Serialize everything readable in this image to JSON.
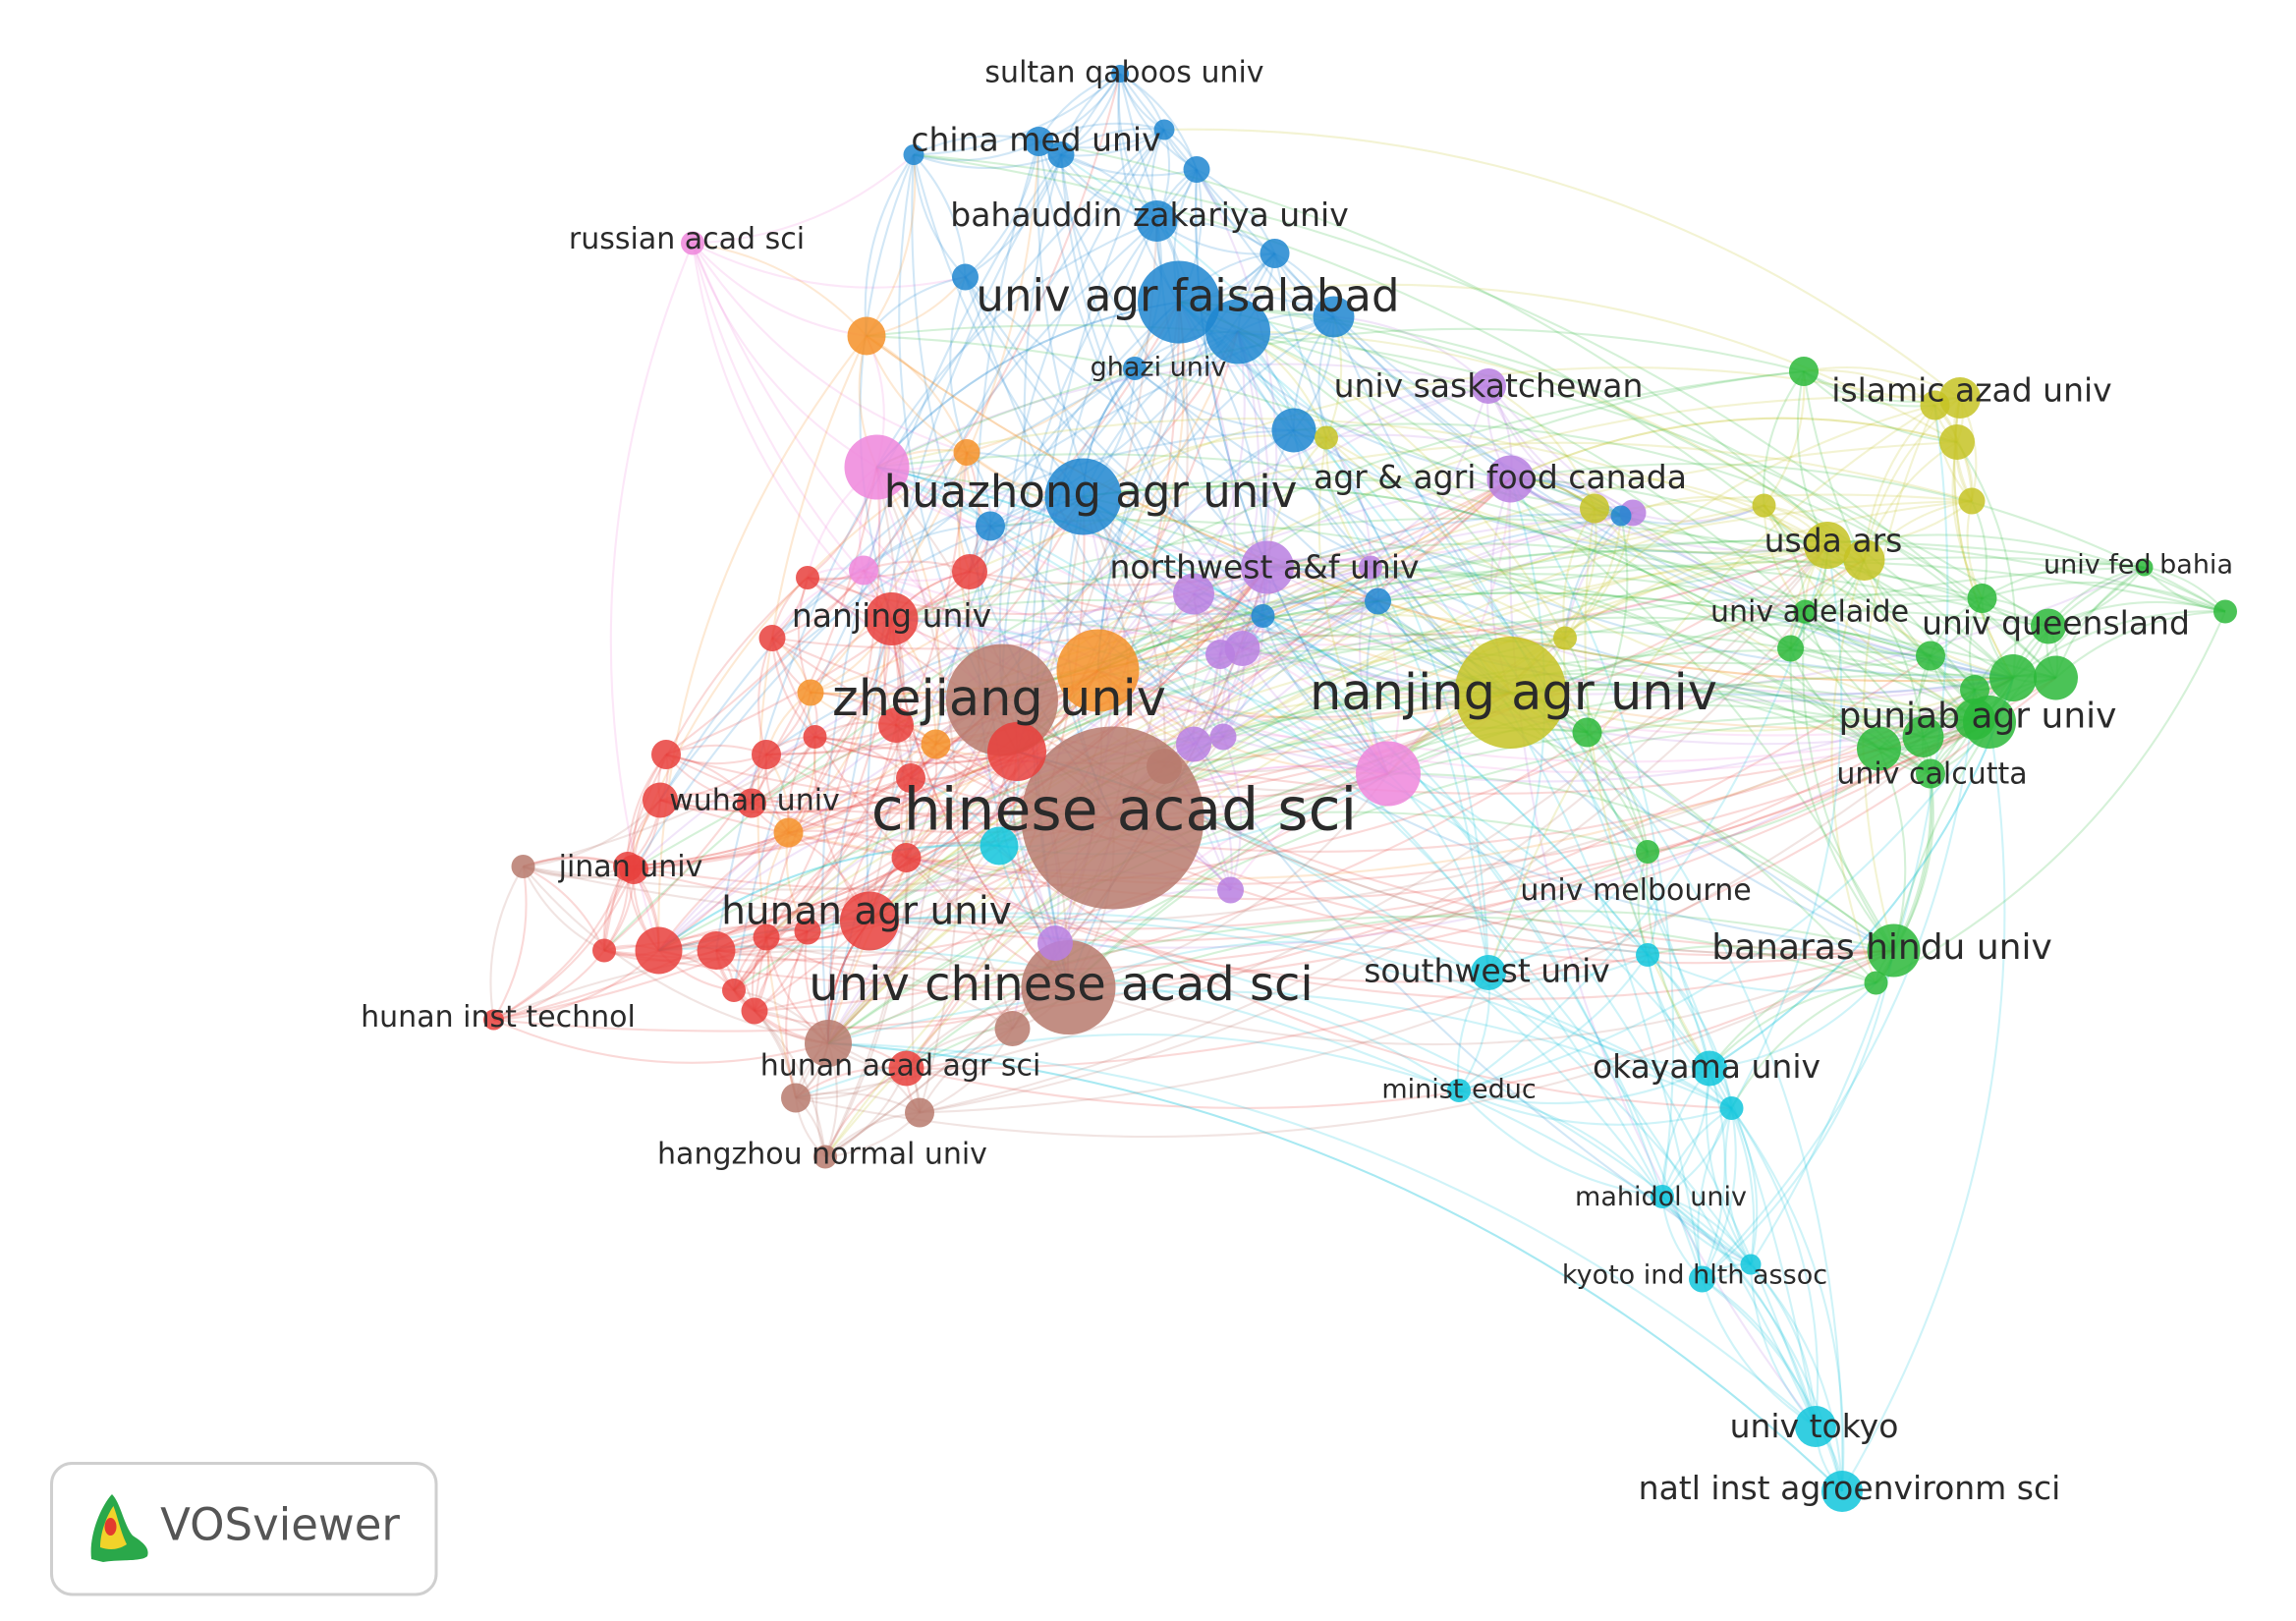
{
  "nodes": [
    {
      "label": "sultan qaboos univ",
      "color": "#1f86d0"
    },
    {
      "label": "china med univ",
      "color": "#1f86d0"
    },
    {
      "label": "bahauddin zakariya univ",
      "color": "#1f86d0"
    },
    {
      "label": "russian acad sci",
      "color": "#ee86dc"
    },
    {
      "label": "univ agr faisalabad",
      "color": "#1f86d0"
    },
    {
      "label": "ghazi univ",
      "color": "#1f86d0"
    },
    {
      "label": "univ saskatchewan",
      "color": "#b87fe0"
    },
    {
      "label": "islamic azad univ",
      "color": "#c5c325"
    },
    {
      "label": "agr & agri food canada",
      "color": "#b87fe0"
    },
    {
      "label": "huazhong agr univ",
      "color": "#1f86d0"
    },
    {
      "label": "usda ars",
      "color": "#c5c325"
    },
    {
      "label": "univ fed bahia",
      "color": "#2cb93a"
    },
    {
      "label": "northwest a&f univ",
      "color": "#b87fe0"
    },
    {
      "label": "univ adelaide",
      "color": "#2cb93a"
    },
    {
      "label": "univ queensland",
      "color": "#2cb93a"
    },
    {
      "label": "nanjing univ",
      "color": "#e8403c"
    },
    {
      "label": "nanjing agr univ",
      "color": "#c5c325"
    },
    {
      "label": "zhejiang univ",
      "color": "#b77a6d"
    },
    {
      "label": "punjab agr univ",
      "color": "#2cb93a"
    },
    {
      "label": "univ calcutta",
      "color": "#2cb93a"
    },
    {
      "label": "chinese acad sci",
      "color": "#b77a6d"
    },
    {
      "label": "wuhan univ",
      "color": "#e8403c"
    },
    {
      "label": "jinan univ",
      "color": "#e8403c"
    },
    {
      "label": "univ melbourne",
      "color": "#2cb93a"
    },
    {
      "label": "hunan agr univ",
      "color": "#e8403c"
    },
    {
      "label": "banaras hindu univ",
      "color": "#2cb93a"
    },
    {
      "label": "southwest univ",
      "color": "#10c5dc"
    },
    {
      "label": "univ chinese acad sci",
      "color": "#b77a6d"
    },
    {
      "label": "hunan inst technol",
      "color": "#e8403c"
    },
    {
      "label": "hunan acad agr sci",
      "color": "#e8403c"
    },
    {
      "label": "okayama univ",
      "color": "#10c5dc"
    },
    {
      "label": "minist educ",
      "color": "#10c5dc"
    },
    {
      "label": "hangzhou normal univ",
      "color": "#b77a6d"
    },
    {
      "label": "mahidol univ",
      "color": "#10c5dc"
    },
    {
      "label": "kyoto ind hlth assoc",
      "color": "#10c5dc"
    },
    {
      "label": "univ tokyo",
      "color": "#10c5dc"
    },
    {
      "label": "natl inst agroenvironm sci",
      "color": "#10c5dc"
    }
  ],
  "logo": {
    "text": "VOSviewer"
  }
}
